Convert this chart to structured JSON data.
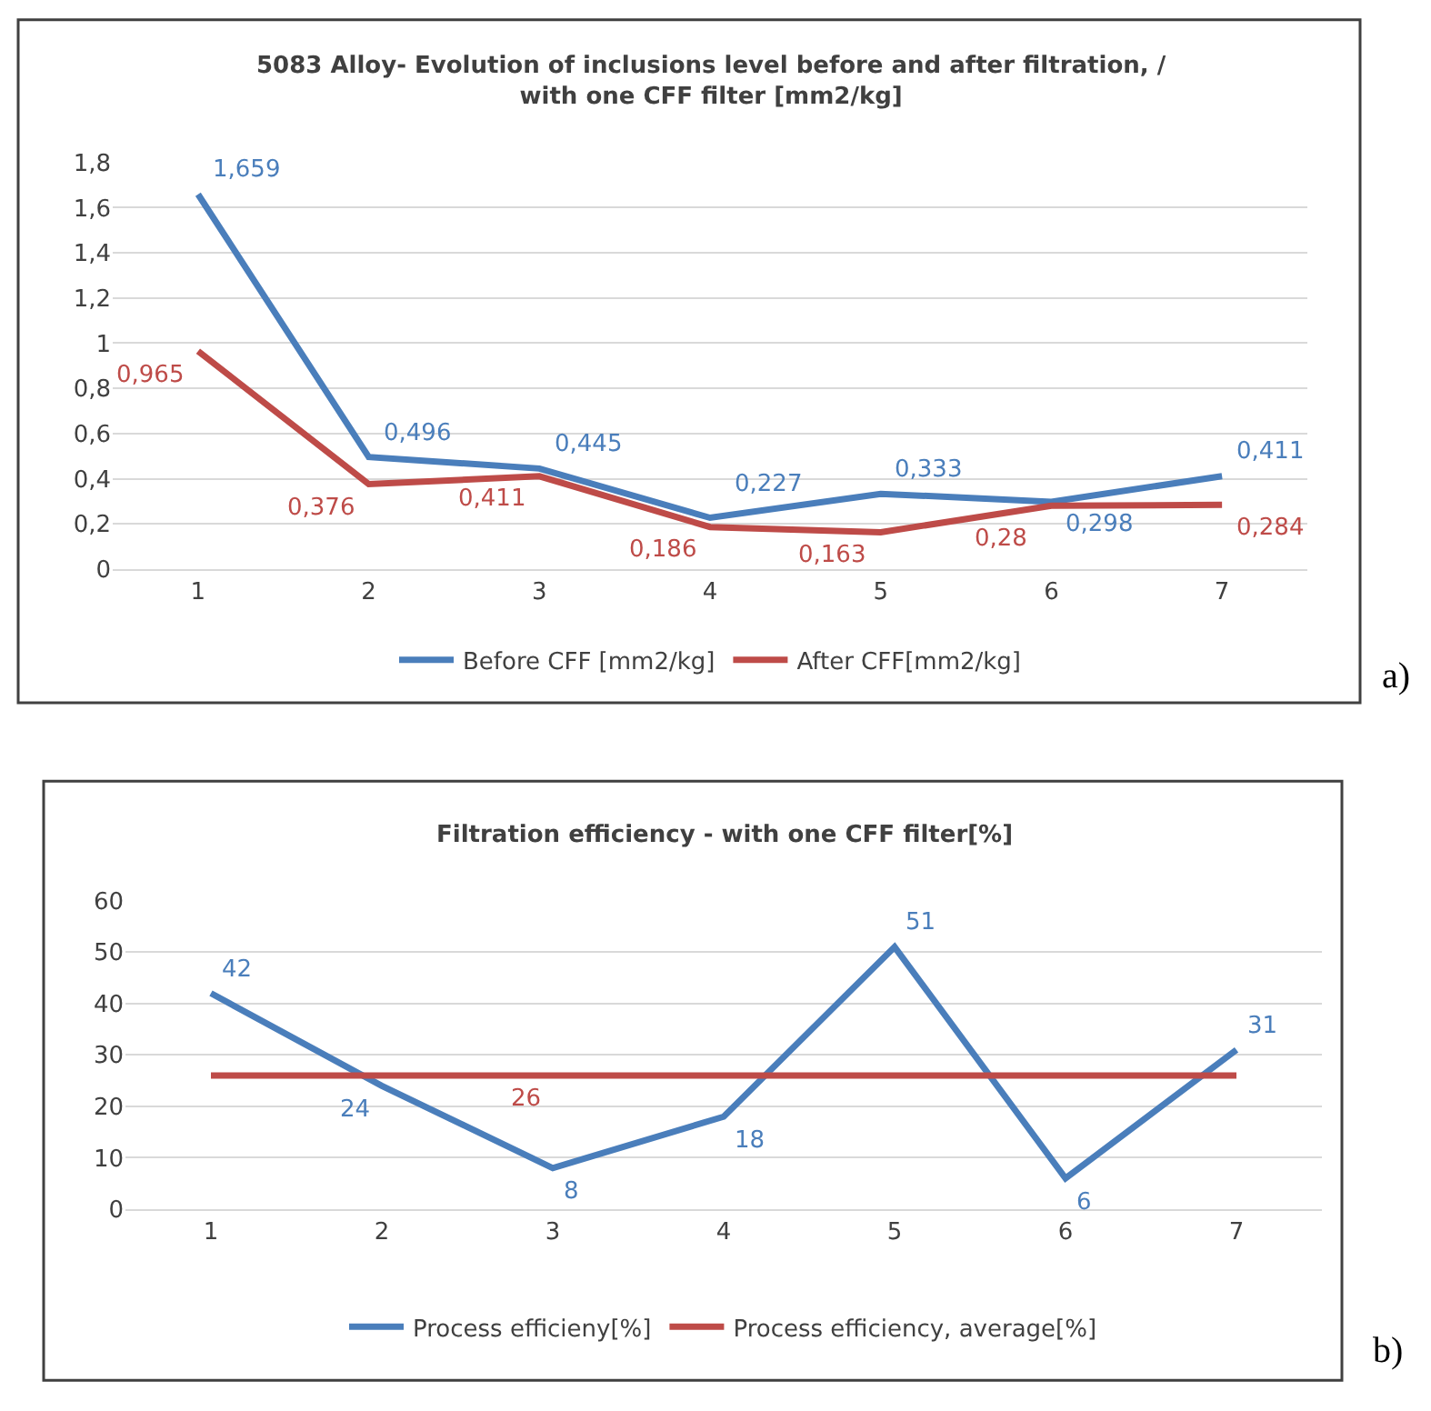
{
  "chart_data": [
    {
      "type": "line",
      "title": "5083 Alloy- Evolution of inclusions level before and after filtration, /\nwith one CFF filter [mm2/kg]",
      "categories": [
        "1",
        "2",
        "3",
        "4",
        "5",
        "6",
        "7"
      ],
      "series": [
        {
          "name": "Before CFF [mm2/kg]",
          "color": "#4a7ebb",
          "values": [
            1.659,
            0.496,
            0.445,
            0.227,
            0.333,
            0.298,
            0.411
          ],
          "value_labels": [
            "1,659",
            "0,496",
            "0,445",
            "0,227",
            "0,333",
            "0,298",
            "0,411"
          ]
        },
        {
          "name": "After CFF[mm2/kg]",
          "color": "#be4b48",
          "values": [
            0.965,
            0.376,
            0.411,
            0.186,
            0.163,
            0.28,
            0.284
          ],
          "value_labels": [
            "0,965",
            "0,376",
            "0,411",
            "0,186",
            "0,163",
            "0,28",
            "0,284"
          ]
        }
      ],
      "ylim": [
        0,
        1.8
      ],
      "yticks": [
        0,
        {
          "value": 0.2,
          "label": "0,2"
        },
        {
          "value": 0.4,
          "label": "0,4"
        },
        {
          "value": 0.6,
          "label": "0,6"
        },
        {
          "value": 0.8,
          "label": "0,8"
        },
        1,
        {
          "value": 1.2,
          "label": "1,2"
        },
        {
          "value": 1.4,
          "label": "1,4"
        },
        {
          "value": 1.6,
          "label": "1,6"
        },
        {
          "value": 1.8,
          "label": "1,8"
        }
      ],
      "grid": "y",
      "legend": "bottom",
      "marker": "none",
      "line_style": "solid",
      "annotations": [
        "a)"
      ]
    },
    {
      "type": "line",
      "title": "Filtration efficiency - with one CFF filter[%]",
      "categories": [
        "1",
        "2",
        "3",
        "4",
        "5",
        "6",
        "7"
      ],
      "series": [
        {
          "name": "Process efficieny[%]",
          "color": "#4a7ebb",
          "values": [
            42,
            24,
            8,
            18,
            51,
            6,
            31
          ],
          "value_labels": [
            "42",
            "24",
            "8",
            "18",
            "51",
            "6",
            "31"
          ]
        },
        {
          "name": "Process efficiency, average[%]",
          "color": "#be4b48",
          "values": [
            26,
            26,
            26,
            26,
            26,
            26,
            26
          ],
          "value_labels": [
            null,
            null,
            "26",
            null,
            null,
            null,
            null
          ]
        }
      ],
      "ylim": [
        0,
        60
      ],
      "yticks": [
        0,
        10,
        20,
        30,
        40,
        50,
        60
      ],
      "grid": "y",
      "legend": "bottom",
      "marker": "none",
      "line_style": "solid",
      "annotations": [
        "b)"
      ]
    }
  ]
}
